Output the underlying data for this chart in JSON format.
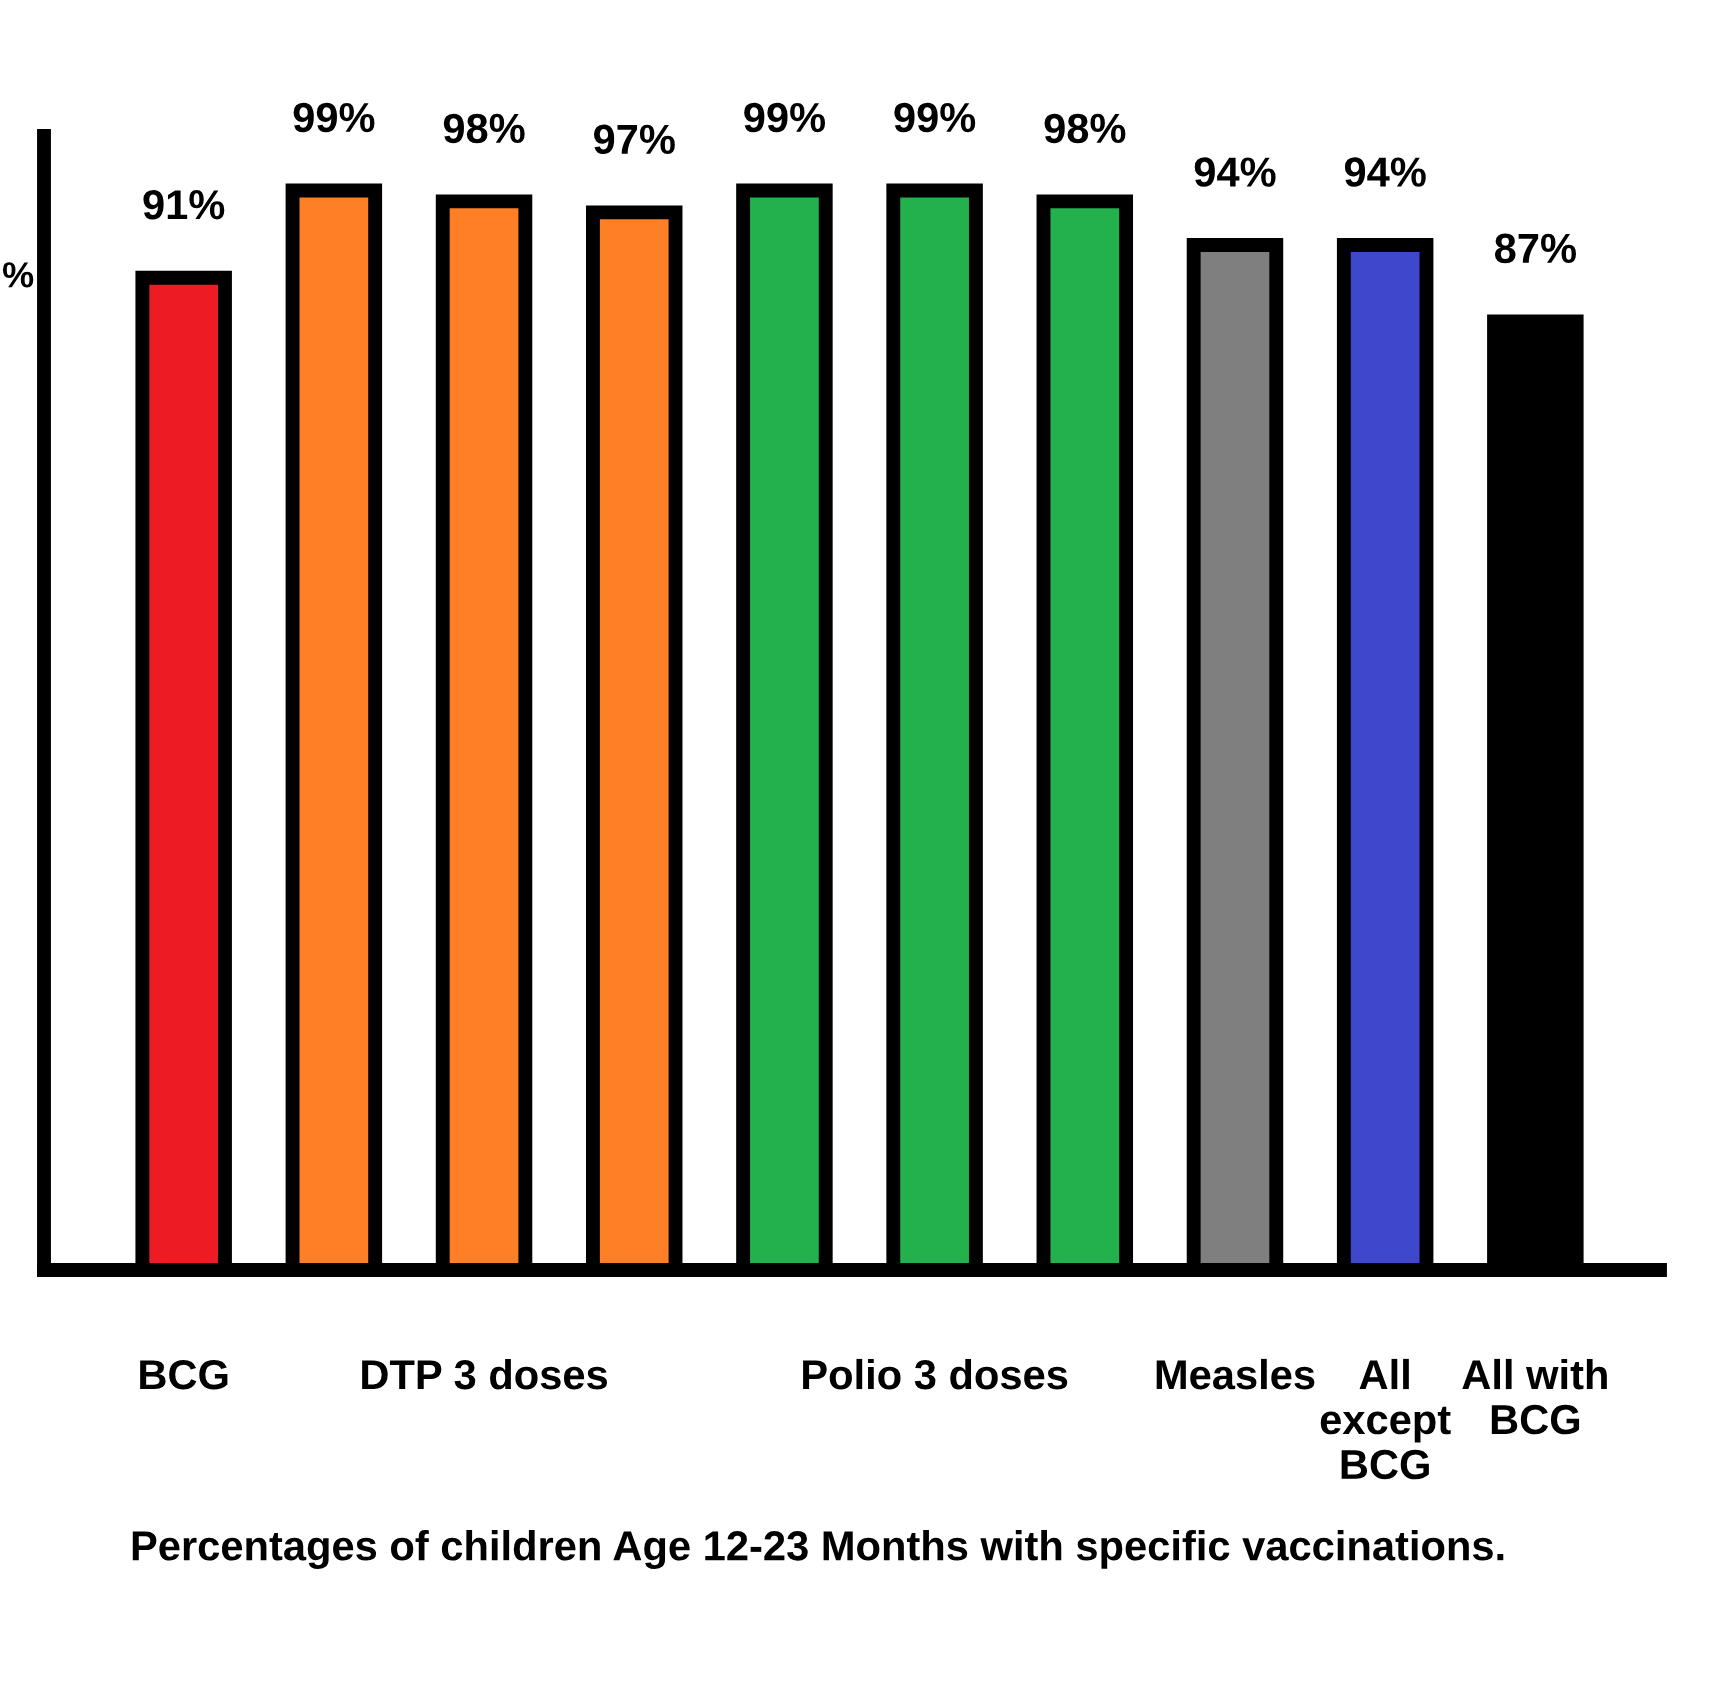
{
  "chart_data": {
    "type": "bar",
    "categories": [
      "BCG",
      null,
      "DTP 3 doses",
      null,
      null,
      "Polio 3 doses",
      null,
      "Measles",
      "All\nexcept\nBCG",
      "All with\nBCG"
    ],
    "values": [
      91,
      99,
      98,
      97,
      99,
      99,
      98,
      94,
      94,
      87
    ],
    "colors": [
      "#ed1c24",
      "#ff7f27",
      "#ff7f27",
      "#ff7f27",
      "#22b14c",
      "#22b14c",
      "#22b14c",
      "#7f7f7f",
      "#3f48cc",
      "#000000"
    ],
    "value_labels": [
      "91%",
      "99%",
      "98%",
      "97%",
      "99%",
      "99%",
      "98%",
      "94%",
      "94%",
      "87%"
    ],
    "ylabel": "%",
    "ylim": [
      0,
      104
    ],
    "grid": false,
    "legend": false,
    "tick_labels": "x",
    "annotations": [
      "Percentages of children Age 12-23 Months with specific vaccinations."
    ]
  }
}
